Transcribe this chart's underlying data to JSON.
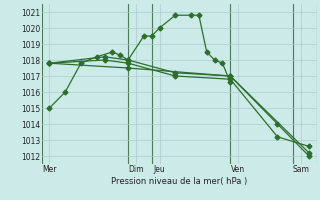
{
  "title": "",
  "xlabel": "Pression niveau de la mer( hPa )",
  "ylabel": "",
  "background_color": "#cceae7",
  "grid_color": "#aacccc",
  "line_color": "#2d6e2d",
  "ylim": [
    1011.5,
    1021.5
  ],
  "xlim": [
    0,
    17.5
  ],
  "yticks": [
    1012,
    1013,
    1014,
    1015,
    1016,
    1017,
    1018,
    1019,
    1020,
    1021
  ],
  "xtick_labels": [
    "Mer",
    "Dim",
    "Jeu",
    "Ven",
    "Sam"
  ],
  "xtick_positions": [
    0.5,
    6.0,
    7.5,
    12.5,
    16.5
  ],
  "vlines": [
    0.0,
    5.5,
    7.0,
    12.0,
    16.0,
    17.5
  ],
  "series": [
    {
      "x": [
        0.5,
        1.5,
        2.5,
        3.5,
        4.5,
        5.0,
        5.5,
        6.5,
        7.0,
        7.5,
        8.5,
        9.5,
        10.0,
        10.5,
        11.0,
        11.5,
        12.0
      ],
      "y": [
        1015.0,
        1016.0,
        1017.8,
        1018.2,
        1018.5,
        1018.3,
        1018.0,
        1019.5,
        1019.5,
        1020.0,
        1020.8,
        1020.8,
        1020.8,
        1018.5,
        1018.0,
        1017.8,
        1016.6
      ]
    },
    {
      "x": [
        0.5,
        4.0,
        5.5,
        8.5,
        12.0,
        15.0,
        17.0
      ],
      "y": [
        1017.8,
        1018.2,
        1018.0,
        1017.2,
        1017.0,
        1014.0,
        1012.0
      ]
    },
    {
      "x": [
        0.5,
        4.0,
        5.5,
        8.5,
        12.0,
        15.0,
        17.0
      ],
      "y": [
        1017.8,
        1018.0,
        1017.8,
        1017.0,
        1016.8,
        1013.2,
        1012.6
      ]
    },
    {
      "x": [
        0.5,
        5.5,
        12.0,
        17.0
      ],
      "y": [
        1017.8,
        1017.5,
        1017.0,
        1012.2
      ]
    }
  ]
}
